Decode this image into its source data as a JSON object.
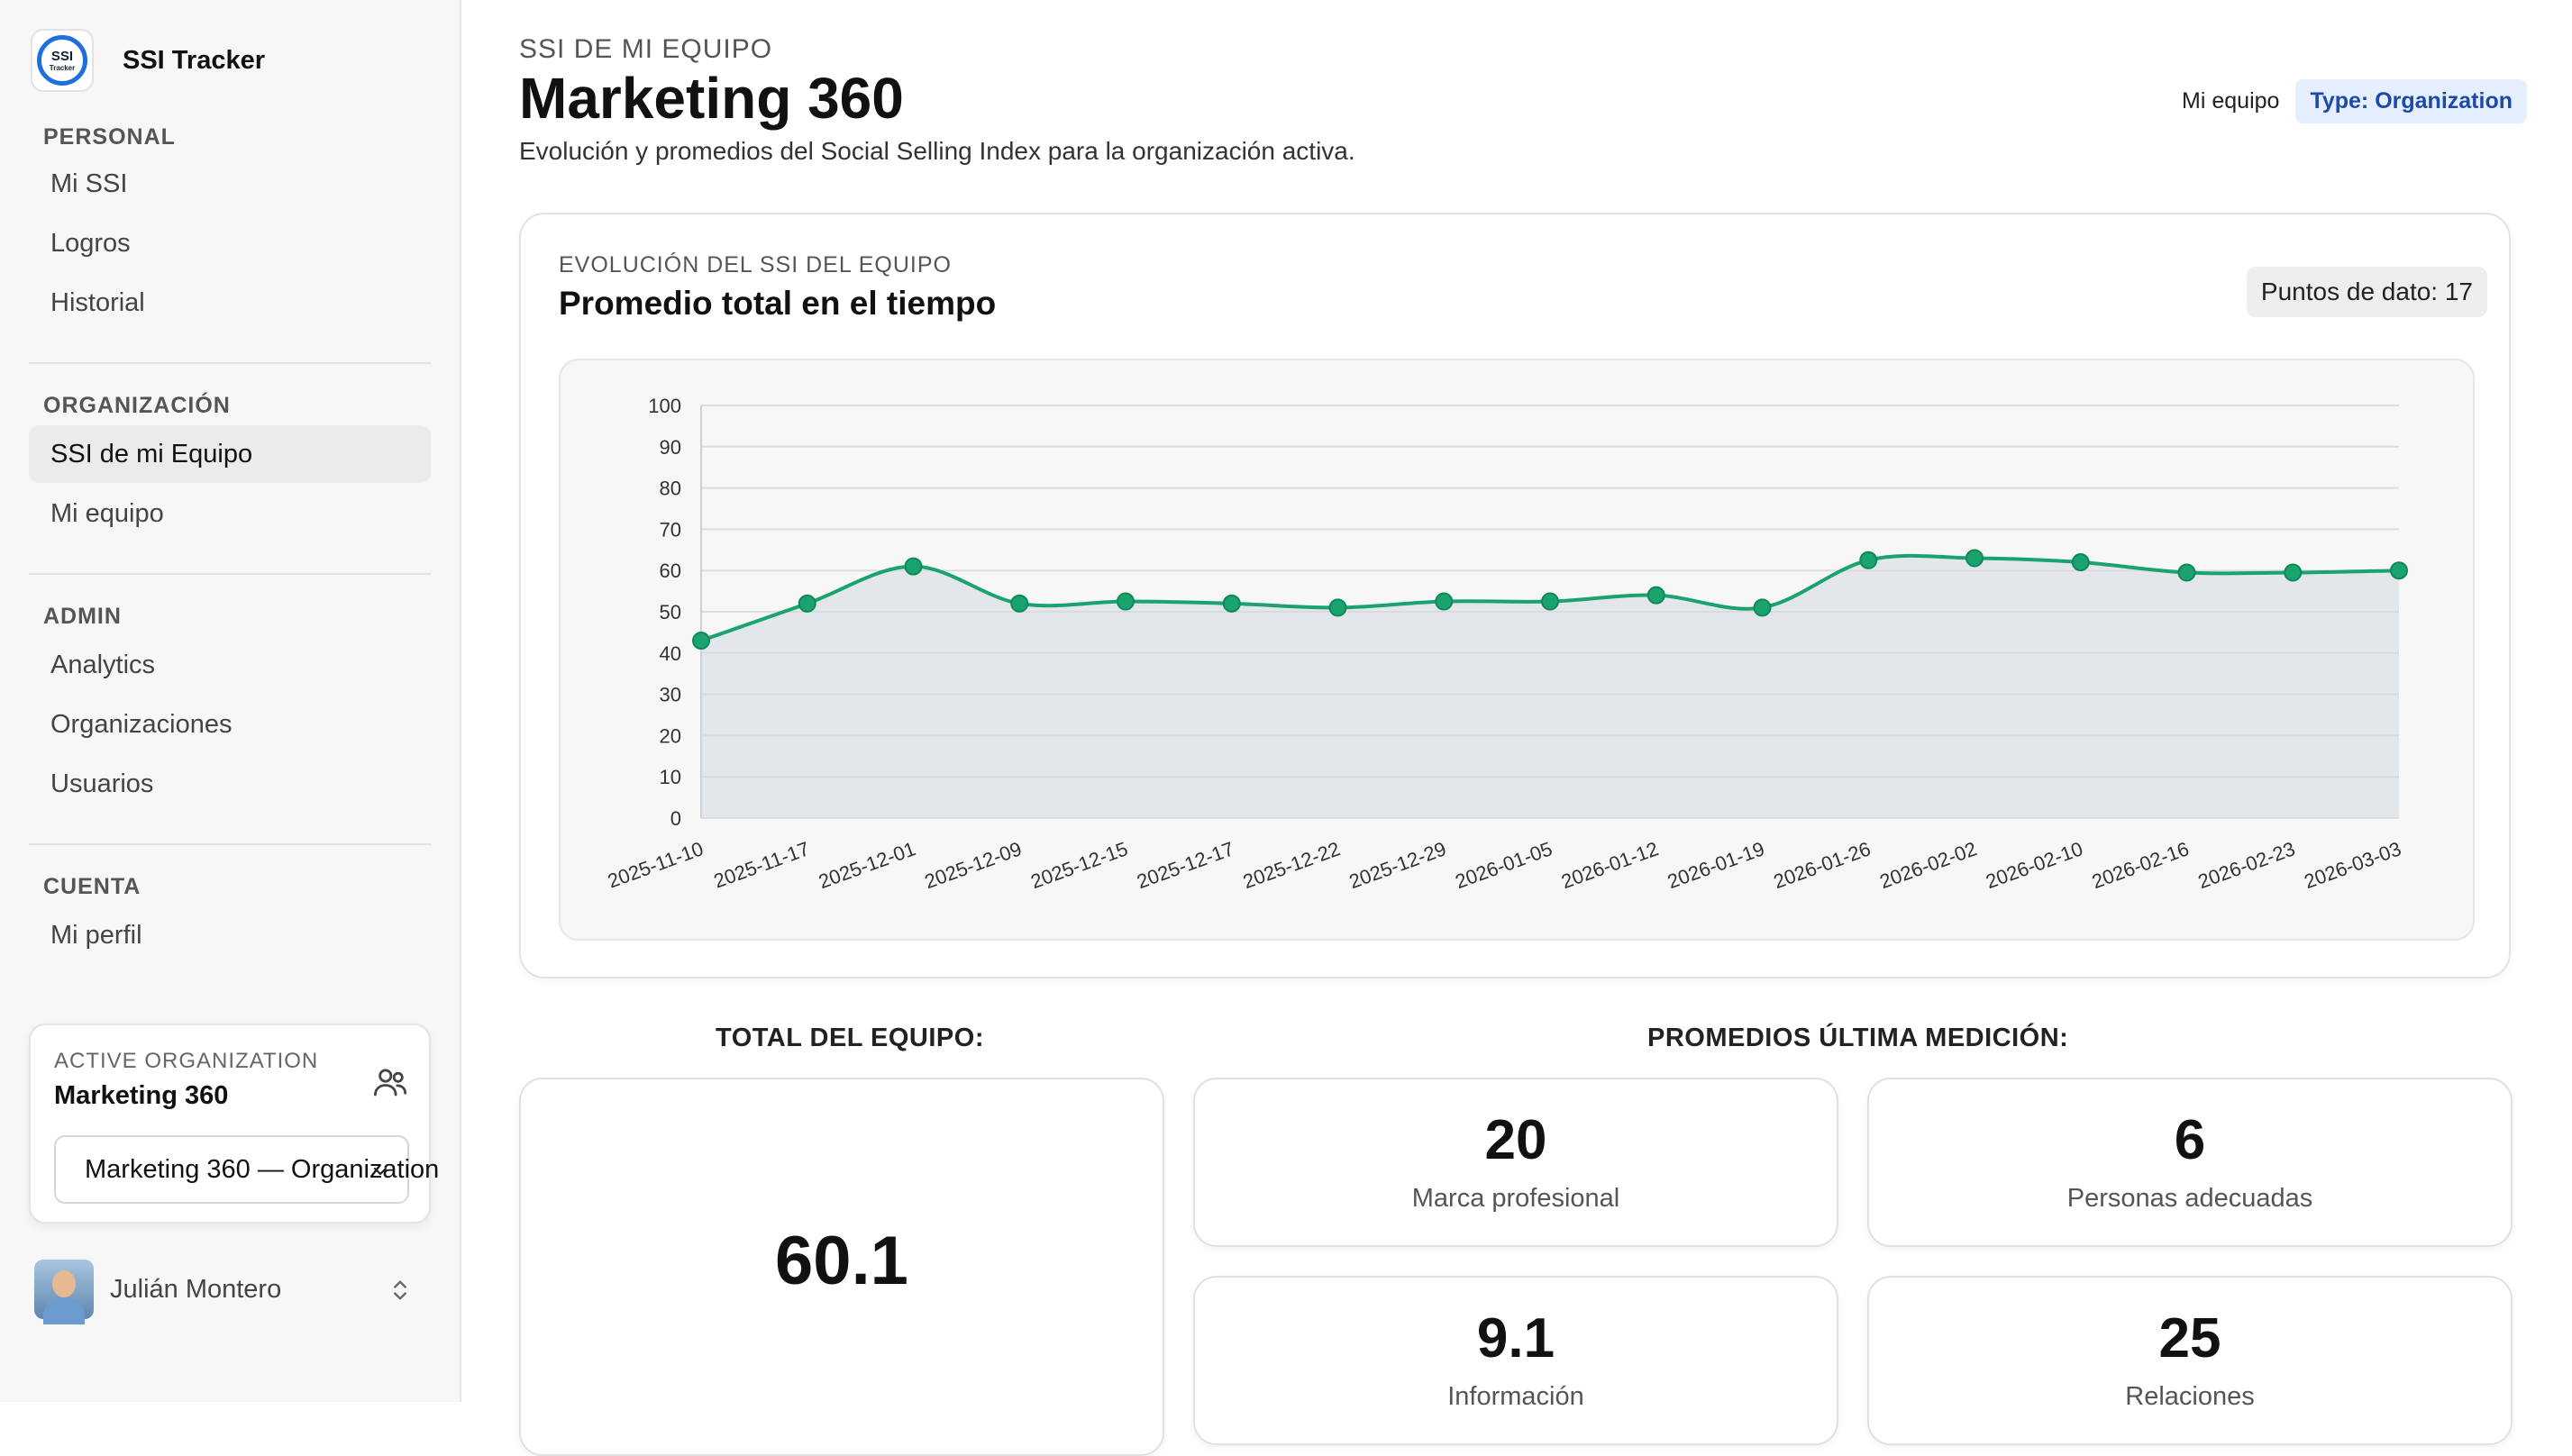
{
  "app": {
    "name": "SSI Tracker",
    "logo_text_1": "SSI",
    "logo_text_2": "Tracker"
  },
  "sidebar": {
    "sections": [
      {
        "label": "PERSONAL",
        "items": [
          "Mi SSI",
          "Logros",
          "Historial"
        ]
      },
      {
        "label": "ORGANIZACIÓN",
        "items": [
          "SSI de mi Equipo",
          "Mi equipo"
        ]
      },
      {
        "label": "ADMIN",
        "items": [
          "Analytics",
          "Organizaciones",
          "Usuarios"
        ]
      },
      {
        "label": "CUENTA",
        "items": [
          "Mi perfil"
        ]
      }
    ],
    "active_item": "SSI de mi Equipo",
    "org_card": {
      "label": "ACTIVE ORGANIZATION",
      "name": "Marketing 360",
      "select_value": "Marketing 360 — Organization"
    },
    "user": {
      "name": "Julián Montero"
    }
  },
  "header": {
    "eyebrow": "SSI DE MI EQUIPO",
    "title": "Marketing 360",
    "description": "Evolución y promedios del Social Selling Index para la organización activa.",
    "link": "Mi equipo",
    "badge": "Type: Organization"
  },
  "chart_card": {
    "eyebrow": "EVOLUCIÓN DEL SSI DEL EQUIPO",
    "title": "Promedio total en el tiempo",
    "points_badge": "Puntos de dato: 17"
  },
  "chart_data": {
    "type": "line",
    "x": [
      "2025-11-10",
      "2025-11-17",
      "2025-12-01",
      "2025-12-09",
      "2025-12-15",
      "2025-12-17",
      "2025-12-22",
      "2025-12-29",
      "2026-01-05",
      "2026-01-12",
      "2026-01-19",
      "2026-01-26",
      "2026-02-02",
      "2026-02-10",
      "2026-02-16",
      "2026-02-23",
      "2026-03-03"
    ],
    "series": [
      {
        "values": [
          43,
          52,
          61,
          52,
          52.5,
          52,
          51,
          52.5,
          52.5,
          54,
          51,
          62.5,
          63,
          62,
          59.5,
          59.5,
          60
        ]
      }
    ],
    "ylim": [
      0,
      100
    ],
    "yticks": [
      0,
      10,
      20,
      30,
      40,
      50,
      60,
      70,
      80,
      90,
      100
    ],
    "grid": true,
    "color": "#1aa36f"
  },
  "summary": {
    "total_label": "TOTAL DEL EQUIPO:",
    "total_value": "60.1",
    "averages_label": "PROMEDIOS ÚLTIMA MEDICIÓN:",
    "stats": [
      {
        "value": "20",
        "label": "Marca profesional"
      },
      {
        "value": "6",
        "label": "Personas adecuadas"
      },
      {
        "value": "9.1",
        "label": "Información"
      },
      {
        "value": "25",
        "label": "Relaciones"
      }
    ]
  }
}
